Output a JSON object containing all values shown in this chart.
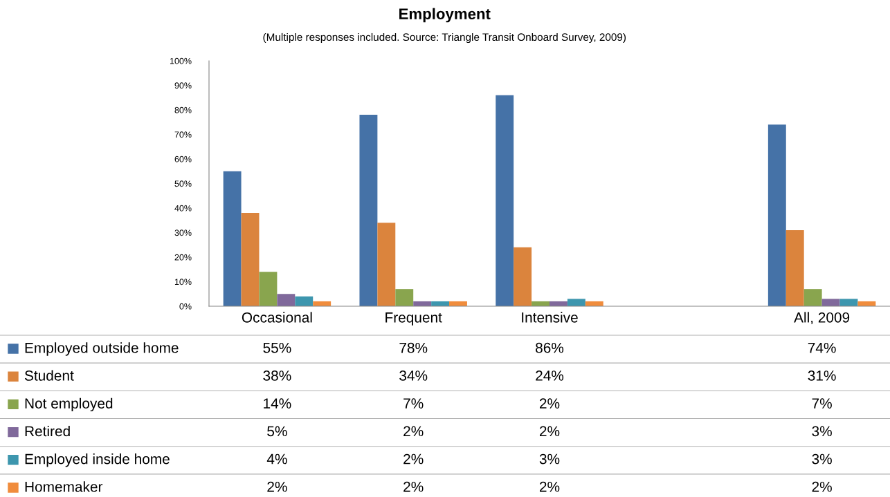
{
  "chart_data": {
    "type": "bar",
    "title": "Employment",
    "subtitle": "(Multiple responses included. Source: Triangle Transit Onboard Survey, 2009)",
    "categories": [
      "Occasional",
      "Frequent",
      "Intensive",
      null,
      "All, 2009"
    ],
    "series": [
      {
        "name": "Employed outside home",
        "color": "#4572a7",
        "values": [
          55,
          78,
          86,
          null,
          74
        ],
        "value_labels": [
          "55%",
          "78%",
          "86%",
          null,
          "74%"
        ]
      },
      {
        "name": "Student",
        "color": "#db843d",
        "values": [
          38,
          34,
          24,
          null,
          31
        ],
        "value_labels": [
          "38%",
          "34%",
          "24%",
          null,
          "31%"
        ]
      },
      {
        "name": "Not employed",
        "color": "#89a54e",
        "values": [
          14,
          7,
          2,
          null,
          7
        ],
        "value_labels": [
          "14%",
          "7%",
          "2%",
          null,
          "7%"
        ]
      },
      {
        "name": "Retired",
        "color": "#80699b",
        "values": [
          5,
          2,
          2,
          null,
          3
        ],
        "value_labels": [
          "5%",
          "2%",
          "2%",
          null,
          "3%"
        ]
      },
      {
        "name": "Employed inside home",
        "color": "#3d96ae",
        "values": [
          4,
          2,
          3,
          null,
          3
        ],
        "value_labels": [
          "4%",
          "2%",
          "3%",
          null,
          "3%"
        ]
      },
      {
        "name": "Homemaker",
        "color": "#f08c3c",
        "values": [
          2,
          2,
          2,
          null,
          2
        ],
        "value_labels": [
          "2%",
          "2%",
          "2%",
          null,
          "2%"
        ]
      }
    ],
    "ylim": [
      0,
      100
    ],
    "yticks": [
      {
        "value": 0,
        "label": "0%"
      },
      {
        "value": 10,
        "label": "10%"
      },
      {
        "value": 20,
        "label": "20%"
      },
      {
        "value": 30,
        "label": "30%"
      },
      {
        "value": 40,
        "label": "40%"
      },
      {
        "value": 50,
        "label": "50%"
      },
      {
        "value": 60,
        "label": "60%"
      },
      {
        "value": 70,
        "label": "70%"
      },
      {
        "value": 80,
        "label": "80%"
      },
      {
        "value": 90,
        "label": "90%"
      },
      {
        "value": 100,
        "label": "100%"
      }
    ],
    "grid": false,
    "legend": "bottom"
  }
}
